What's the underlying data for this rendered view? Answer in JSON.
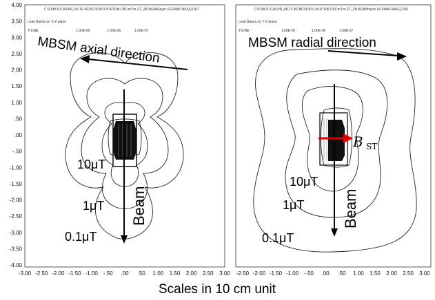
{
  "left_panel": {
    "path_text": "C:\\FSBOL\\CASPR_MLTF-BCBF2\\D\\PLUY\\RTRB-CBL\\mTm-ZT_2B-BGBM\\aym-SCFAB6-NASQ.DAT",
    "subtitle": "Leak Bakes on X-Z plane",
    "legend_tag": "T/LINE",
    "legend_values": [
      "1.00E-05",
      "1.00E-06",
      "1.00E-07"
    ],
    "direction_label": "MBSM axial direction",
    "beam_label": "Beam",
    "contour_labels": [
      "10μT",
      "1μT",
      "0.1μT"
    ],
    "y_ticks": [
      "4.00",
      "3.50",
      "3.00",
      "2.50",
      "2.00",
      "1.50",
      "1.00",
      ".50",
      ".00",
      "-.50",
      "-1.00",
      "-1.50",
      "-2.00",
      "-2.50",
      "-3.00",
      "-3.50",
      "-4.00"
    ],
    "x_ticks": [
      "-3.00",
      "-2.50",
      "-2.00",
      "-1.50",
      "-1.00",
      "-.50",
      ".00",
      ".50",
      "1.00",
      "1.50",
      "2.00",
      "2.50",
      "3.00"
    ]
  },
  "right_panel": {
    "path_text": "C:\\FSBOL\\CASPR_MLTF-BCBF2\\D\\PLUY\\RTRB-CBL\\mTm-ZT_2B-BGBM\\aym-SCFAB6-NASQ.DAT",
    "subtitle": "Leak Bakes on Y-Z plane",
    "legend_tag": "T/LINE",
    "legend_values": [
      "1.00E-05",
      "1.00E-06",
      "1.00E-07"
    ],
    "direction_label": "MBSM radial direction",
    "beam_label": "Beam",
    "field_label_main": "B",
    "field_label_sub": "ST",
    "contour_labels": [
      "10μT",
      "1μT",
      "0.1μT"
    ],
    "x_ticks": [
      "-2.50",
      "-2.00",
      "-1.50",
      "-1.00",
      "-.50",
      ".00",
      ".50",
      "1.00",
      "1.50",
      "2.00",
      "2.50",
      "3.00"
    ]
  },
  "caption": "Scales in 10 cm unit",
  "colors": {
    "field_arrow": "#e00000",
    "ink": "#000000"
  }
}
